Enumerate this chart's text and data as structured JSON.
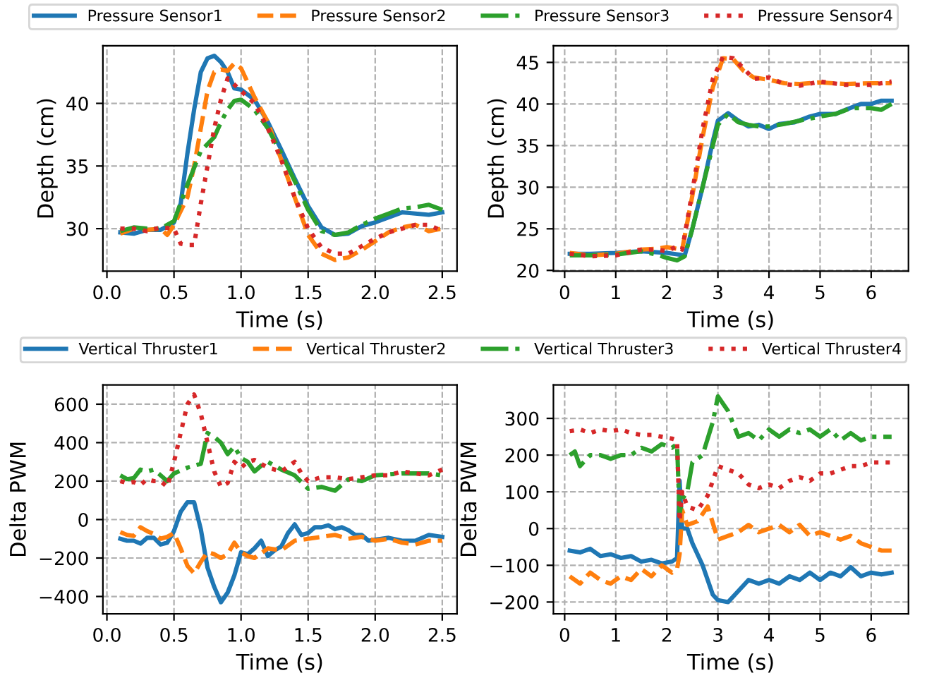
{
  "chart_data": [
    {
      "type": "line",
      "xlabel": "Time (s)",
      "ylabel": "Depth (cm)",
      "xlim": [
        -0.03,
        2.61
      ],
      "ylim": [
        26.6,
        44.6
      ],
      "xticks": [
        {
          "value": 0,
          "label": "0.0"
        },
        0.5,
        {
          "value": 1,
          "label": "1.0"
        },
        1.5,
        {
          "value": 2,
          "label": "2.0"
        },
        2.5
      ],
      "yticks": [
        30,
        35,
        40
      ],
      "grid": true,
      "legend": "top",
      "series": [
        {
          "name": "Pressure Sensor1",
          "color": "#1f77b4",
          "line_style": "solid",
          "x": [
            0.1,
            0.2,
            0.3,
            0.4,
            0.5,
            0.55,
            0.6,
            0.65,
            0.7,
            0.75,
            0.8,
            0.85,
            0.9,
            0.95,
            1.0,
            1.1,
            1.2,
            1.3,
            1.4,
            1.5,
            1.6,
            1.7,
            1.8,
            1.9,
            2.0,
            2.1,
            2.2,
            2.3,
            2.4,
            2.5
          ],
          "values": [
            29.7,
            29.6,
            29.9,
            29.9,
            30.5,
            32,
            36,
            39.5,
            42.5,
            43.6,
            43.8,
            43.3,
            42.5,
            41.2,
            41.1,
            40.3,
            38.5,
            36.3,
            34,
            31.8,
            30.1,
            29.5,
            29.6,
            30.2,
            30.5,
            30.9,
            31.3,
            31.2,
            31.1,
            31.3
          ]
        },
        {
          "name": "Pressure Sensor2",
          "color": "#ff7f0e",
          "line_style": "dashed",
          "x": [
            0.1,
            0.2,
            0.3,
            0.4,
            0.45,
            0.5,
            0.6,
            0.65,
            0.7,
            0.75,
            0.8,
            0.85,
            0.9,
            0.95,
            1.0,
            1.1,
            1.2,
            1.3,
            1.4,
            1.5,
            1.6,
            1.7,
            1.8,
            1.9,
            2.0,
            2.1,
            2.2,
            2.3,
            2.4,
            2.5
          ],
          "values": [
            29.6,
            30,
            29.9,
            30,
            29.5,
            30.3,
            32.5,
            35,
            38,
            41,
            42.5,
            42.7,
            42.6,
            43.2,
            42.8,
            40.5,
            38.5,
            35.5,
            32.5,
            29.5,
            28,
            27.5,
            27.7,
            28.3,
            29,
            29.7,
            30.1,
            30.3,
            29.8,
            30
          ]
        },
        {
          "name": "Pressure Sensor3",
          "color": "#2ca02c",
          "line_style": "dashdot",
          "x": [
            0.1,
            0.2,
            0.3,
            0.4,
            0.5,
            0.6,
            0.7,
            0.8,
            0.85,
            0.9,
            0.95,
            1.0,
            1.1,
            1.2,
            1.3,
            1.4,
            1.5,
            1.6,
            1.7,
            1.8,
            1.9,
            2.0,
            2.1,
            2.2,
            2.3,
            2.4,
            2.5
          ],
          "values": [
            29.8,
            30.1,
            30,
            30,
            30.6,
            33.5,
            36.2,
            37.3,
            38.5,
            39.5,
            40.2,
            40.3,
            39.5,
            38,
            36,
            33.8,
            31.5,
            29.8,
            29.5,
            29.7,
            30.3,
            30.8,
            31.2,
            31.6,
            31.7,
            31.9,
            31.5
          ]
        },
        {
          "name": "Pressure Sensor4",
          "color": "#d62728",
          "line_style": "dotted",
          "x": [
            0.1,
            0.2,
            0.3,
            0.4,
            0.5,
            0.55,
            0.6,
            0.65,
            0.7,
            0.75,
            0.8,
            0.85,
            0.9,
            0.95,
            1.0,
            1.1,
            1.2,
            1.3,
            1.4,
            1.5,
            1.6,
            1.7,
            1.8,
            1.9,
            2.0,
            2.1,
            2.2,
            2.3,
            2.4,
            2.5
          ],
          "values": [
            30,
            30,
            29.8,
            30.1,
            30,
            28.8,
            28.7,
            28.7,
            32,
            35,
            38,
            40.3,
            42,
            41.5,
            41,
            40,
            38,
            35.5,
            32.5,
            30,
            28.5,
            28,
            28,
            28.6,
            29.2,
            29.7,
            30,
            30.3,
            30.3,
            29.8
          ]
        }
      ]
    },
    {
      "type": "line",
      "xlabel": "Time (s)",
      "ylabel": "Depth (cm)",
      "xlim": [
        -0.22,
        6.73
      ],
      "ylim": [
        19.9,
        47
      ],
      "xticks": [
        0,
        1,
        2,
        3,
        4,
        5,
        6
      ],
      "yticks": [
        20,
        25,
        30,
        35,
        40,
        45
      ],
      "grid": true,
      "series": [
        {
          "color": "#1f77b4",
          "line_style": "solid",
          "x": [
            0.1,
            0.5,
            1,
            1.5,
            2,
            2.35,
            2.5,
            2.7,
            2.9,
            3.0,
            3.2,
            3.4,
            3.6,
            3.8,
            4.0,
            4.2,
            4.5,
            4.8,
            5.0,
            5.3,
            5.5,
            5.8,
            6.0,
            6.2,
            6.4
          ],
          "values": [
            22,
            22,
            22.1,
            22.3,
            22.1,
            21.8,
            25,
            30,
            35.5,
            38,
            38.9,
            38,
            37.3,
            37.5,
            37,
            37.6,
            37.8,
            38.5,
            38.8,
            38.8,
            39.3,
            40,
            40,
            40.4,
            40.4
          ]
        },
        {
          "color": "#ff7f0e",
          "line_style": "dashed",
          "x": [
            0.1,
            0.5,
            1,
            1.5,
            1.8,
            2.0,
            2.2,
            2.3,
            2.5,
            2.7,
            2.9,
            3.1,
            3.3,
            3.5,
            3.7,
            4.0,
            4.3,
            4.6,
            5.0,
            5.5,
            6.0,
            6.4
          ],
          "values": [
            22.1,
            21.8,
            22,
            22.5,
            22.6,
            22.8,
            22.6,
            22.5,
            29,
            36,
            42,
            45.5,
            45.4,
            44,
            43.2,
            42.9,
            42.5,
            42.4,
            42.6,
            42.4,
            42.5,
            42.5
          ]
        },
        {
          "color": "#2ca02c",
          "line_style": "dashdot",
          "x": [
            0.1,
            0.5,
            1,
            1.5,
            1.8,
            2.0,
            2.2,
            2.35,
            2.5,
            2.7,
            2.9,
            3.0,
            3.2,
            3.4,
            3.6,
            3.8,
            4.0,
            4.3,
            4.6,
            5.0,
            5.3,
            5.6,
            6.0,
            6.2,
            6.4
          ],
          "values": [
            21.8,
            21.8,
            21.9,
            22.3,
            21.9,
            21.5,
            21.2,
            21.7,
            25,
            30,
            35,
            37.5,
            38.8,
            37.8,
            37.5,
            37.3,
            37.3,
            37.6,
            38,
            38.5,
            38.8,
            39.5,
            39.5,
            39.3,
            40
          ]
        },
        {
          "color": "#d62728",
          "line_style": "dotted",
          "x": [
            0.1,
            0.5,
            1,
            1.5,
            1.8,
            2.0,
            2.2,
            2.3,
            2.5,
            2.7,
            2.9,
            3.1,
            3.3,
            3.5,
            3.7,
            4.0,
            4.3,
            4.6,
            5.0,
            5.5,
            6.0,
            6.4
          ],
          "values": [
            22,
            21.7,
            21.8,
            22.5,
            22.5,
            22.3,
            22.9,
            22.5,
            29.5,
            37,
            43,
            45.7,
            45.5,
            44.3,
            43,
            43.2,
            42.4,
            42.2,
            42.7,
            42.3,
            42.3,
            42.7
          ]
        }
      ]
    },
    {
      "type": "line",
      "xlabel": "Time (s)",
      "ylabel": "Delta PWM",
      "xlim": [
        -0.03,
        2.61
      ],
      "ylim": [
        -490,
        700
      ],
      "xticks": [
        {
          "value": 0,
          "label": "0.0"
        },
        0.5,
        {
          "value": 1,
          "label": "1.0"
        },
        1.5,
        {
          "value": 2,
          "label": "2.0"
        },
        2.5
      ],
      "yticks": [
        {
          "value": -400,
          "label": "−400"
        },
        {
          "value": -200,
          "label": "−200"
        },
        0,
        200,
        400,
        600
      ],
      "grid": true,
      "legend": "top",
      "series": [
        {
          "name": "Vertical Thruster1",
          "color": "#1f77b4",
          "line_style": "solid",
          "x": [
            0.1,
            0.15,
            0.2,
            0.25,
            0.3,
            0.35,
            0.4,
            0.45,
            0.5,
            0.55,
            0.6,
            0.65,
            0.7,
            0.75,
            0.8,
            0.85,
            0.9,
            0.95,
            1.0,
            1.05,
            1.1,
            1.15,
            1.2,
            1.25,
            1.3,
            1.35,
            1.4,
            1.45,
            1.5,
            1.55,
            1.6,
            1.65,
            1.7,
            1.75,
            1.8,
            1.85,
            1.9,
            1.95,
            2.0,
            2.1,
            2.2,
            2.3,
            2.4,
            2.5
          ],
          "values": [
            -100,
            -110,
            -110,
            -125,
            -95,
            -95,
            -130,
            -120,
            -60,
            40,
            90,
            90,
            -50,
            -250,
            -350,
            -430,
            -380,
            -290,
            -170,
            -180,
            -150,
            -110,
            -190,
            -160,
            -140,
            -70,
            -25,
            -80,
            -70,
            -40,
            -40,
            -30,
            -50,
            -40,
            -55,
            -80,
            -80,
            -110,
            -105,
            -95,
            -110,
            -110,
            -80,
            -90
          ]
        },
        {
          "name": "Vertical Thruster2",
          "color": "#ff7f0e",
          "line_style": "dashed",
          "x": [
            0.1,
            0.15,
            0.2,
            0.25,
            0.3,
            0.35,
            0.4,
            0.45,
            0.5,
            0.55,
            0.6,
            0.65,
            0.7,
            0.75,
            0.8,
            0.85,
            0.9,
            0.95,
            1.0,
            1.05,
            1.1,
            1.15,
            1.2,
            1.3,
            1.4,
            1.5,
            1.6,
            1.7,
            1.8,
            1.9,
            2.0,
            2.1,
            2.2,
            2.3,
            2.4,
            2.5
          ],
          "values": [
            -65,
            -80,
            -85,
            -40,
            -60,
            -75,
            -100,
            -90,
            -70,
            -150,
            -240,
            -280,
            -220,
            -170,
            -180,
            -200,
            -180,
            -120,
            -170,
            -190,
            -200,
            -175,
            -150,
            -160,
            -110,
            -100,
            -90,
            -80,
            -100,
            -90,
            -110,
            -100,
            -120,
            -130,
            -110,
            -110
          ]
        },
        {
          "name": "Vertical Thruster3",
          "color": "#2ca02c",
          "line_style": "dashdot",
          "x": [
            0.1,
            0.15,
            0.2,
            0.25,
            0.3,
            0.35,
            0.4,
            0.45,
            0.5,
            0.6,
            0.7,
            0.75,
            0.8,
            0.85,
            0.9,
            0.95,
            1.0,
            1.05,
            1.1,
            1.15,
            1.2,
            1.3,
            1.4,
            1.5,
            1.6,
            1.7,
            1.8,
            1.9,
            2.0,
            2.2,
            2.3,
            2.4,
            2.5
          ],
          "values": [
            230,
            210,
            215,
            260,
            250,
            260,
            230,
            200,
            240,
            270,
            290,
            450,
            430,
            400,
            340,
            380,
            320,
            300,
            250,
            280,
            300,
            260,
            230,
            160,
            170,
            150,
            210,
            200,
            230,
            240,
            240,
            240,
            230
          ]
        },
        {
          "name": "Vertical Thruster4",
          "color": "#d62728",
          "line_style": "dotted",
          "x": [
            0.1,
            0.15,
            0.2,
            0.25,
            0.3,
            0.35,
            0.4,
            0.45,
            0.5,
            0.55,
            0.6,
            0.65,
            0.7,
            0.75,
            0.8,
            0.85,
            0.9,
            0.95,
            1.0,
            1.05,
            1.1,
            1.15,
            1.2,
            1.3,
            1.4,
            1.45,
            1.5,
            1.6,
            1.7,
            1.8,
            1.9,
            2.0,
            2.1,
            2.2,
            2.3,
            2.4,
            2.5
          ],
          "values": [
            200,
            190,
            195,
            180,
            210,
            200,
            200,
            170,
            300,
            450,
            600,
            650,
            550,
            400,
            250,
            170,
            190,
            300,
            270,
            300,
            310,
            290,
            270,
            250,
            300,
            240,
            200,
            220,
            220,
            210,
            220,
            230,
            230,
            250,
            240,
            230,
            260
          ]
        }
      ]
    },
    {
      "type": "line",
      "xlabel": "Time (s)",
      "ylabel": "Delta PWM",
      "xlim": [
        -0.22,
        6.73
      ],
      "ylim": [
        -232,
        391
      ],
      "xticks": [
        0,
        1,
        2,
        3,
        4,
        5,
        6
      ],
      "yticks": [
        {
          "value": -200,
          "label": "−200"
        },
        {
          "value": -100,
          "label": "−100"
        },
        0,
        100,
        200,
        300
      ],
      "grid": true,
      "series": [
        {
          "color": "#1f77b4",
          "line_style": "solid",
          "x": [
            0.1,
            0.3,
            0.5,
            0.7,
            0.9,
            1.1,
            1.3,
            1.5,
            1.7,
            1.9,
            2.1,
            2.2,
            2.25,
            2.3,
            2.4,
            2.5,
            2.7,
            2.9,
            3.0,
            3.2,
            3.4,
            3.6,
            3.8,
            4.0,
            4.2,
            4.4,
            4.6,
            4.8,
            5.0,
            5.2,
            5.4,
            5.6,
            5.8,
            6.0,
            6.2,
            6.4
          ],
          "values": [
            -60,
            -65,
            -55,
            -75,
            -70,
            -80,
            -75,
            -90,
            -85,
            -95,
            -90,
            -80,
            130,
            0,
            0,
            -40,
            -100,
            -180,
            -195,
            -200,
            -170,
            -140,
            -150,
            -140,
            -150,
            -130,
            -140,
            -120,
            -140,
            -120,
            -130,
            -105,
            -130,
            -120,
            -125,
            -120
          ]
        },
        {
          "color": "#ff7f0e",
          "line_style": "dashed",
          "x": [
            0.1,
            0.3,
            0.5,
            0.7,
            0.9,
            1.1,
            1.3,
            1.5,
            1.7,
            1.9,
            2.1,
            2.2,
            2.25,
            2.3,
            2.4,
            2.6,
            2.8,
            3.0,
            3.2,
            3.4,
            3.6,
            3.8,
            4.0,
            4.2,
            4.4,
            4.6,
            4.8,
            5.0,
            5.2,
            5.4,
            5.6,
            5.8,
            6.0,
            6.2,
            6.4
          ],
          "values": [
            -130,
            -150,
            -120,
            -140,
            -150,
            -130,
            -140,
            -110,
            -130,
            -100,
            -120,
            -110,
            -70,
            50,
            10,
            20,
            60,
            -30,
            -20,
            -10,
            10,
            -10,
            0,
            10,
            -10,
            10,
            -20,
            -10,
            -20,
            -30,
            -20,
            -40,
            -50,
            -60,
            -60
          ]
        },
        {
          "color": "#2ca02c",
          "line_style": "dashdot",
          "x": [
            0.1,
            0.2,
            0.3,
            0.5,
            0.7,
            0.9,
            1.1,
            1.3,
            1.5,
            1.7,
            1.9,
            2.1,
            2.2,
            2.25,
            2.3,
            2.4,
            2.5,
            2.7,
            2.9,
            3.0,
            3.2,
            3.4,
            3.6,
            3.8,
            4.0,
            4.2,
            4.4,
            4.6,
            4.8,
            5.0,
            5.2,
            5.4,
            5.6,
            5.8,
            6.0,
            6.2,
            6.4
          ],
          "values": [
            200,
            210,
            170,
            200,
            200,
            190,
            200,
            200,
            220,
            210,
            230,
            220,
            230,
            40,
            80,
            100,
            180,
            200,
            290,
            360,
            320,
            250,
            260,
            240,
            270,
            250,
            270,
            260,
            270,
            250,
            270,
            240,
            260,
            240,
            250,
            250,
            250
          ]
        },
        {
          "color": "#d62728",
          "line_style": "dotted",
          "x": [
            0.1,
            0.3,
            0.5,
            0.7,
            0.9,
            1.1,
            1.3,
            1.5,
            1.7,
            1.9,
            2.1,
            2.2,
            2.25,
            2.3,
            2.4,
            2.6,
            2.8,
            3.0,
            3.2,
            3.4,
            3.6,
            3.8,
            4.0,
            4.2,
            4.4,
            4.6,
            4.8,
            5.0,
            5.2,
            5.4,
            5.6,
            5.8,
            6.0,
            6.2,
            6.4
          ],
          "values": [
            265,
            270,
            260,
            270,
            265,
            270,
            260,
            255,
            255,
            250,
            245,
            240,
            20,
            100,
            60,
            50,
            90,
            170,
            160,
            150,
            120,
            110,
            120,
            110,
            130,
            140,
            130,
            150,
            150,
            160,
            170,
            170,
            180,
            180,
            180
          ]
        }
      ]
    }
  ]
}
